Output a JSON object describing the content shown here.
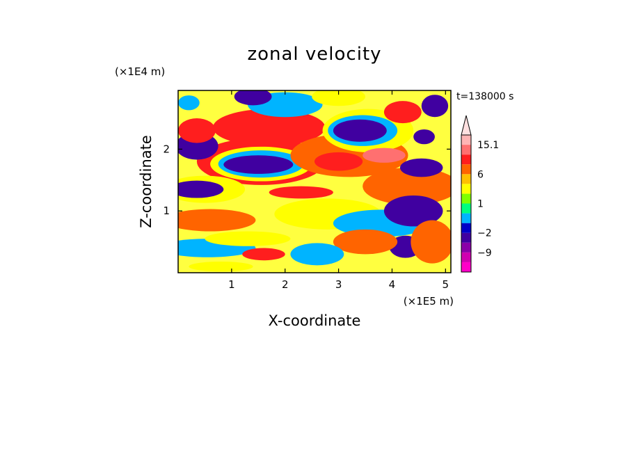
{
  "chart_data": {
    "type": "heatmap",
    "title": "zonal velocity",
    "xlabel": "X-coordinate",
    "ylabel": "Z-coordinate",
    "x_unit": "(×1E5 m)",
    "y_unit": "(×1E4 m)",
    "time_label": "t=138000 s",
    "xlim": [
      0,
      5.1
    ],
    "ylim": [
      0,
      2.95
    ],
    "x_ticks": [
      1,
      2,
      3,
      4,
      5
    ],
    "y_ticks": [
      1,
      2
    ],
    "colorbar": {
      "levels": [
        -15,
        -12,
        -9,
        -6,
        -2,
        -1,
        0,
        1,
        2,
        4,
        6,
        9,
        12,
        15.1
      ],
      "labels": [
        "15.1",
        "6",
        "1",
        "−2",
        "−9"
      ],
      "colors": [
        "#ff00c8",
        "#d000b0",
        "#8a00a8",
        "#4000a0",
        "#0000c8",
        "#00b4ff",
        "#00ff80",
        "#7fff00",
        "#ffff00",
        "#ffc000",
        "#ff6400",
        "#ff1e1e",
        "#ff7070",
        "#ffb4b4",
        "#ffe0e0"
      ],
      "extend": "max"
    },
    "background": "#ffff40",
    "blobs": [
      {
        "x": 1.55,
        "y": 1.8,
        "rx": 1.2,
        "ry": 0.38,
        "v": 6
      },
      {
        "x": 1.55,
        "y": 1.76,
        "rx": 0.95,
        "ry": 0.28,
        "v": 1
      },
      {
        "x": 1.55,
        "y": 1.76,
        "rx": 0.8,
        "ry": 0.22,
        "v": -2
      },
      {
        "x": 1.5,
        "y": 1.75,
        "rx": 0.65,
        "ry": 0.15,
        "v": -9
      },
      {
        "x": 1.7,
        "y": 2.35,
        "rx": 1.05,
        "ry": 0.3,
        "v": 6
      },
      {
        "x": 0.35,
        "y": 2.05,
        "rx": 0.4,
        "ry": 0.22,
        "v": -9
      },
      {
        "x": 0.35,
        "y": 2.3,
        "rx": 0.35,
        "ry": 0.2,
        "v": 6
      },
      {
        "x": 0.5,
        "y": 1.35,
        "rx": 0.75,
        "ry": 0.22,
        "v": 1
      },
      {
        "x": 0.35,
        "y": 1.35,
        "rx": 0.5,
        "ry": 0.14,
        "v": -9
      },
      {
        "x": 0.6,
        "y": 0.85,
        "rx": 0.85,
        "ry": 0.18,
        "v": 4
      },
      {
        "x": 0.55,
        "y": 0.4,
        "rx": 0.9,
        "ry": 0.15,
        "v": -2
      },
      {
        "x": 1.3,
        "y": 0.55,
        "rx": 0.8,
        "ry": 0.12,
        "v": 1
      },
      {
        "x": 2.8,
        "y": 0.95,
        "rx": 1.0,
        "ry": 0.25,
        "v": 1
      },
      {
        "x": 3.8,
        "y": 0.8,
        "rx": 0.9,
        "ry": 0.22,
        "v": -2
      },
      {
        "x": 3.2,
        "y": 1.9,
        "rx": 1.1,
        "ry": 0.35,
        "v": 4
      },
      {
        "x": 3.55,
        "y": 2.3,
        "rx": 0.85,
        "ry": 0.35,
        "v": 1
      },
      {
        "x": 3.45,
        "y": 2.3,
        "rx": 0.65,
        "ry": 0.25,
        "v": -2
      },
      {
        "x": 3.4,
        "y": 2.3,
        "rx": 0.5,
        "ry": 0.18,
        "v": -9
      },
      {
        "x": 3.0,
        "y": 1.8,
        "rx": 0.45,
        "ry": 0.15,
        "v": 6
      },
      {
        "x": 3.85,
        "y": 1.9,
        "rx": 0.4,
        "ry": 0.12,
        "v": 9
      },
      {
        "x": 4.35,
        "y": 1.4,
        "rx": 0.9,
        "ry": 0.3,
        "v": 4
      },
      {
        "x": 4.55,
        "y": 1.7,
        "rx": 0.4,
        "ry": 0.15,
        "v": -9
      },
      {
        "x": 4.4,
        "y": 1.0,
        "rx": 0.55,
        "ry": 0.25,
        "v": -9
      },
      {
        "x": 4.25,
        "y": 0.42,
        "rx": 0.3,
        "ry": 0.18,
        "v": -9
      },
      {
        "x": 4.75,
        "y": 0.5,
        "rx": 0.4,
        "ry": 0.35,
        "v": 4
      },
      {
        "x": 2.0,
        "y": 2.72,
        "rx": 0.7,
        "ry": 0.2,
        "v": -2
      },
      {
        "x": 1.4,
        "y": 2.85,
        "rx": 0.35,
        "ry": 0.14,
        "v": -9
      },
      {
        "x": 3.0,
        "y": 2.85,
        "rx": 0.5,
        "ry": 0.15,
        "v": 1
      },
      {
        "x": 4.2,
        "y": 2.6,
        "rx": 0.35,
        "ry": 0.18,
        "v": 6
      },
      {
        "x": 4.6,
        "y": 2.2,
        "rx": 0.2,
        "ry": 0.12,
        "v": -9
      },
      {
        "x": 4.8,
        "y": 2.7,
        "rx": 0.25,
        "ry": 0.18,
        "v": -9
      },
      {
        "x": 0.2,
        "y": 2.75,
        "rx": 0.2,
        "ry": 0.12,
        "v": -2
      },
      {
        "x": 2.3,
        "y": 1.3,
        "rx": 0.6,
        "ry": 0.1,
        "v": 6
      },
      {
        "x": 1.6,
        "y": 0.3,
        "rx": 0.4,
        "ry": 0.1,
        "v": 6
      },
      {
        "x": 0.8,
        "y": 0.1,
        "rx": 0.6,
        "ry": 0.08,
        "v": 1
      },
      {
        "x": 3.5,
        "y": 0.5,
        "rx": 0.6,
        "ry": 0.2,
        "v": 4
      },
      {
        "x": 2.6,
        "y": 0.3,
        "rx": 0.5,
        "ry": 0.18,
        "v": -2
      }
    ]
  }
}
